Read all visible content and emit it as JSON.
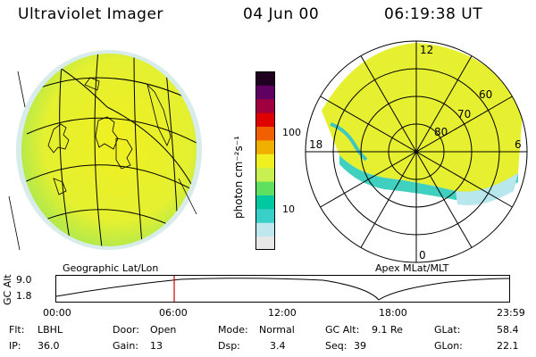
{
  "header": {
    "instrument": "Ultraviolet Imager",
    "date": "04 Jun 00",
    "time": "06:19:38 UT"
  },
  "colorbar": {
    "unit_label": "photon cm⁻²s⁻¹",
    "tick_100": "100",
    "tick_10": "10",
    "colors": [
      "#e8e8e8",
      "#bfe8ee",
      "#38d0c8",
      "#00c8a0",
      "#60e060",
      "#c8f050",
      "#f0f020",
      "#f0b000",
      "#f06000",
      "#e00000",
      "#a00040",
      "#600060",
      "#200020"
    ]
  },
  "left_panel": {
    "caption": "Geographic Lat/Lon"
  },
  "right_panel": {
    "caption": "Apex MLat/MLT",
    "mlt_12": "12",
    "mlt_18": "18",
    "mlt_6": "6",
    "mlt_0": "0",
    "lat_60": "60",
    "lat_70": "70",
    "lat_80": "80"
  },
  "altitude_plot": {
    "axis_label": "GC Alt",
    "y_max": "9.0",
    "y_min": "1.8",
    "x_ticks": [
      "00:00",
      "06:00",
      "12:00",
      "18:00",
      "23:59"
    ]
  },
  "info": {
    "filter_label": "Flt:",
    "filter_value": "LBHL",
    "ip_label": "IP:",
    "ip_value": "36.0",
    "door_label": "Door:",
    "door_value": "Open",
    "gain_label": "Gain:",
    "gain_value": "13",
    "mode_label": "Mode:",
    "mode_value": "Normal",
    "dsp_label": "Dsp:",
    "dsp_value": "3.4",
    "gcalt_label": "GC Alt:",
    "gcalt_value": "9.1 Re",
    "seq_label": "Seq:",
    "seq_value": "39",
    "glat_label": "GLat:",
    "glat_value": "58.4",
    "glon_label": "GLon:",
    "glon_value": "22.1"
  }
}
